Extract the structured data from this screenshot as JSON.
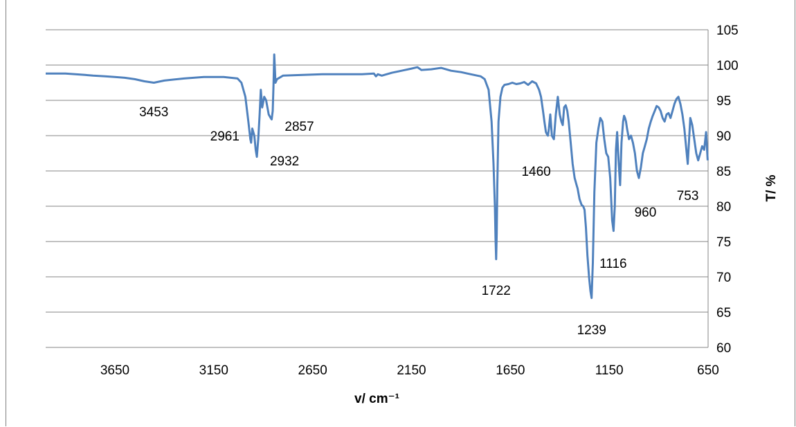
{
  "chart_data": {
    "type": "line",
    "title": "",
    "xlabel": "v/ cm⁻¹",
    "ylabel": "T/ %",
    "x_reversed": true,
    "xlim": [
      4000,
      650
    ],
    "ylim": [
      60,
      105
    ],
    "x_ticks": [
      3650,
      3150,
      2650,
      2150,
      1650,
      1150,
      650
    ],
    "y_ticks": [
      60,
      65,
      70,
      75,
      80,
      85,
      90,
      95,
      100,
      105
    ],
    "y_axis_position": "right",
    "grid": "horizontal",
    "legend": "none",
    "line_color": "#4f81bd",
    "series": [
      {
        "values_description_omitted": true,
        "x": [
          4000,
          3900,
          3800,
          3760,
          3700,
          3650,
          3600,
          3550,
          3500,
          3453,
          3400,
          3300,
          3200,
          3100,
          3030,
          3010,
          2990,
          2975,
          2965,
          2961,
          2955,
          2945,
          2938,
          2932,
          2925,
          2918,
          2912,
          2905,
          2895,
          2885,
          2872,
          2862,
          2857,
          2852,
          2848,
          2844,
          2838,
          2830,
          2800,
          2700,
          2600,
          2500,
          2400,
          2340,
          2330,
          2320,
          2300,
          2250,
          2200,
          2150,
          2120,
          2100,
          2050,
          2000,
          1950,
          1900,
          1850,
          1800,
          1780,
          1760,
          1745,
          1735,
          1728,
          1725,
          1722,
          1719,
          1716,
          1710,
          1700,
          1690,
          1680,
          1660,
          1640,
          1620,
          1600,
          1580,
          1560,
          1540,
          1520,
          1505,
          1495,
          1485,
          1478,
          1470,
          1465,
          1460,
          1455,
          1448,
          1440,
          1430,
          1420,
          1410,
          1400,
          1392,
          1385,
          1378,
          1370,
          1362,
          1355,
          1345,
          1335,
          1325,
          1315,
          1310,
          1300,
          1290,
          1282,
          1275,
          1268,
          1260,
          1252,
          1245,
          1239,
          1233,
          1225,
          1215,
          1205,
          1195,
          1185,
          1175,
          1165,
          1155,
          1145,
          1135,
          1128,
          1122,
          1116,
          1110,
          1102,
          1095,
          1088,
          1080,
          1075,
          1070,
          1065,
          1060,
          1050,
          1040,
          1030,
          1020,
          1010,
          1000,
          990,
          980,
          970,
          960,
          950,
          940,
          930,
          920,
          910,
          900,
          890,
          880,
          870,
          860,
          850,
          840,
          830,
          820,
          810,
          800,
          790,
          780,
          770,
          760,
          753,
          748,
          740,
          730,
          720,
          710,
          700,
          690,
          680,
          670,
          660,
          652
        ],
        "y": [
          98.8,
          98.8,
          98.6,
          98.5,
          98.4,
          98.3,
          98.2,
          98.0,
          97.7,
          97.5,
          97.8,
          98.1,
          98.3,
          98.3,
          98.1,
          97.5,
          95.5,
          92.0,
          89.5,
          89.0,
          91.0,
          90.0,
          88.0,
          87.0,
          89.5,
          93.0,
          96.5,
          94.0,
          95.5,
          95.0,
          93.0,
          92.5,
          92.3,
          93.5,
          97.0,
          101.5,
          97.5,
          98.0,
          98.5,
          98.6,
          98.7,
          98.7,
          98.7,
          98.8,
          98.4,
          98.7,
          98.5,
          98.9,
          99.2,
          99.5,
          99.7,
          99.3,
          99.4,
          99.6,
          99.2,
          99.0,
          98.7,
          98.4,
          98.0,
          96.5,
          92.0,
          86.0,
          80.0,
          75.5,
          72.5,
          76.0,
          83.0,
          92.0,
          95.5,
          96.8,
          97.2,
          97.3,
          97.5,
          97.3,
          97.4,
          97.6,
          97.2,
          97.7,
          97.4,
          96.5,
          95.5,
          93.5,
          92.0,
          90.5,
          90.2,
          90.0,
          91.0,
          93.0,
          90.0,
          89.5,
          93.0,
          95.5,
          93.0,
          92.0,
          91.5,
          94.0,
          94.3,
          93.5,
          92.0,
          89.0,
          86.0,
          84.0,
          83.0,
          82.5,
          81.0,
          80.2,
          80.0,
          79.5,
          77.0,
          73.0,
          70.0,
          68.0,
          67.0,
          72.0,
          82.0,
          89.0,
          91.0,
          92.5,
          92.0,
          89.5,
          87.5,
          87.0,
          84.0,
          78.0,
          76.5,
          80.0,
          88.0,
          90.5,
          86.0,
          83.0,
          89.0,
          92.0,
          92.8,
          92.5,
          92.0,
          91.0,
          89.5,
          90.0,
          89.0,
          87.5,
          85.0,
          84.0,
          85.5,
          87.5,
          88.5,
          89.5,
          91.0,
          92.0,
          92.8,
          93.5,
          94.2,
          94.0,
          93.5,
          92.5,
          92.0,
          93.0,
          93.2,
          92.5,
          93.5,
          94.5,
          95.2,
          95.5,
          94.5,
          93.0,
          91.0,
          88.0,
          86.0,
          88.5,
          92.5,
          91.5,
          89.5,
          87.5,
          86.5,
          87.5,
          88.5,
          88.0,
          90.5,
          86.5
        ]
      }
    ],
    "annotations": [
      {
        "text": "3453",
        "x": 3453
      },
      {
        "text": "2961",
        "x": 2961
      },
      {
        "text": "2932",
        "x": 2932
      },
      {
        "text": "2857",
        "x": 2857
      },
      {
        "text": "1722",
        "x": 1722
      },
      {
        "text": "1460",
        "x": 1460
      },
      {
        "text": "1239",
        "x": 1239
      },
      {
        "text": "1116",
        "x": 1116
      },
      {
        "text": "960",
        "x": 960
      },
      {
        "text": "753",
        "x": 753
      }
    ]
  }
}
